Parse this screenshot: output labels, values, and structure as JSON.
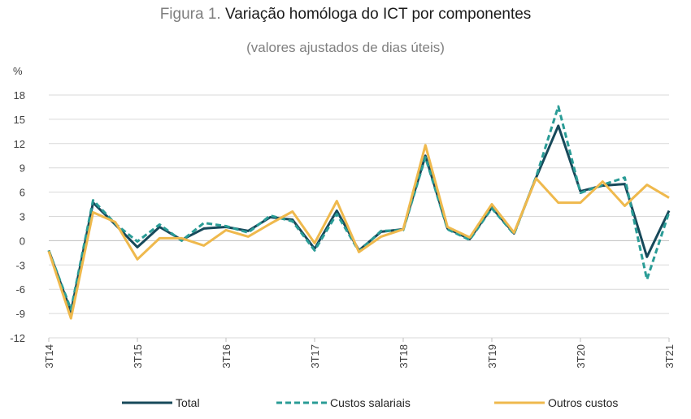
{
  "title_prefix": "Figura 1.",
  "title_main": "Variação homóloga do ICT por componentes",
  "subtitle": "(valores ajustados de dias úteis)",
  "chart_data": {
    "type": "line",
    "ylabel": "%",
    "ylim": [
      -12,
      18
    ],
    "yticks": [
      18,
      15,
      12,
      9,
      6,
      3,
      0,
      -3,
      -6,
      -9,
      -12
    ],
    "x_count": 29,
    "xtick_labels": [
      {
        "index": 0,
        "label": "3T14"
      },
      {
        "index": 4,
        "label": "3T15"
      },
      {
        "index": 8,
        "label": "3T16"
      },
      {
        "index": 12,
        "label": "3T17"
      },
      {
        "index": 16,
        "label": "3T18"
      },
      {
        "index": 20,
        "label": "3T19"
      },
      {
        "index": 24,
        "label": "3T20"
      },
      {
        "index": 28,
        "label": "3T21"
      }
    ],
    "grid": "horizontal",
    "series": [
      {
        "name": "Total",
        "color": "#17495a",
        "dash": "solid",
        "values": [
          -1.2,
          -8.8,
          4.7,
          2.0,
          -0.8,
          1.7,
          0.1,
          1.5,
          1.7,
          1.2,
          2.9,
          2.6,
          -1.0,
          3.7,
          -1.2,
          1.1,
          1.4,
          10.5,
          1.5,
          0.2,
          4.1,
          0.9,
          7.8,
          14.2,
          6.1,
          6.8,
          7.0,
          -2.0,
          3.7
        ]
      },
      {
        "name": "Custos salariais",
        "color": "#2a9c96",
        "dash": "dashed",
        "values": [
          -1.2,
          -8.5,
          5.0,
          2.1,
          -0.1,
          2.0,
          0.0,
          2.2,
          1.8,
          1.0,
          3.1,
          2.4,
          -1.2,
          3.3,
          -1.3,
          1.2,
          1.3,
          10.3,
          1.4,
          0.1,
          4.0,
          0.8,
          7.9,
          16.6,
          5.9,
          6.9,
          7.8,
          -4.8,
          3.5
        ]
      },
      {
        "name": "Outros custos",
        "color": "#efb94d",
        "dash": "solid",
        "values": [
          -1.3,
          -9.6,
          3.5,
          2.3,
          -2.3,
          0.3,
          0.3,
          -0.6,
          1.3,
          0.5,
          2.1,
          3.6,
          -0.3,
          4.9,
          -1.4,
          0.5,
          1.4,
          11.8,
          1.7,
          0.4,
          4.5,
          1.0,
          7.7,
          4.7,
          4.7,
          7.3,
          4.3,
          6.9,
          5.3
        ]
      }
    ],
    "legend_position": "bottom"
  }
}
